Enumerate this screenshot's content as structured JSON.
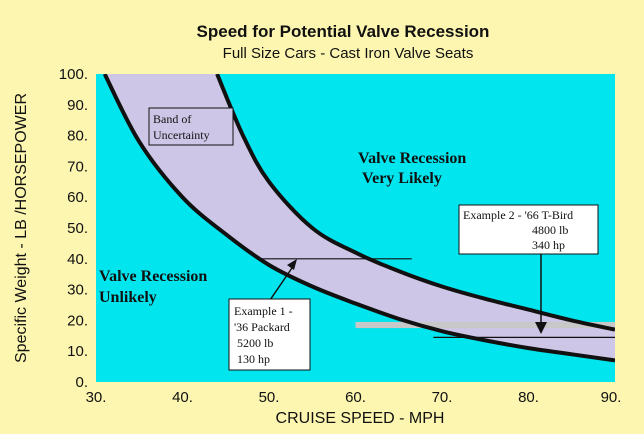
{
  "chart_data": {
    "type": "area",
    "title": "Speed for Potential Valve Recession",
    "subtitle": "Full Size Cars - Cast Iron Valve Seats",
    "xlabel": "CRUISE SPEED - MPH",
    "ylabel": "Specific Weight - LB /HORSEPOWER",
    "xlim": [
      30,
      90
    ],
    "ylim": [
      0,
      100
    ],
    "x_ticks": [
      "30.",
      "40.",
      "50.",
      "60.",
      "70.",
      "80.",
      "90."
    ],
    "y_ticks": [
      "0.",
      "10.",
      "20.",
      "30.",
      "40.",
      "50.",
      "60.",
      "70.",
      "80.",
      "90.",
      "100."
    ],
    "grid": false,
    "colors": {
      "plot_background": "#00e5ee",
      "band_fill": "#cdc6e6",
      "page_background": "#fdf6b0",
      "example_bar": "#c8c8c8"
    },
    "series": [
      {
        "name": "Band of Uncertainty",
        "lower": {
          "x": [
            31,
            35,
            40,
            45,
            50,
            55,
            60,
            65,
            70,
            75,
            80,
            85,
            90
          ],
          "y": [
            100,
            78,
            60,
            48,
            38,
            31,
            25.5,
            20.5,
            16.5,
            13.5,
            11,
            9,
            7
          ]
        },
        "upper": {
          "x": [
            44,
            47,
            50,
            55,
            60,
            65,
            70,
            75,
            80,
            85,
            90
          ],
          "y": [
            100,
            80,
            65,
            50,
            42,
            36,
            31,
            27,
            23.5,
            20,
            17
          ]
        }
      }
    ],
    "annotations": [
      {
        "lines": [
          "Band of",
          "Uncertainty"
        ]
      },
      {
        "lines": [
          "Valve Recession",
          "Very Likely"
        ]
      },
      {
        "lines": [
          "Valve Recession",
          "Unlikely"
        ]
      },
      {
        "lines": [
          "Example 1 -",
          "'36 Packard",
          "5200 lb",
          "130 hp"
        ],
        "guide_y": 40,
        "guide_x_range": [
          49,
          66.5
        ],
        "arrow_to": {
          "x": 52.5,
          "y": 34
        }
      },
      {
        "lines": [
          "Example 2 - '66 T-Bird",
          "4800 lb",
          "340 hp"
        ],
        "bar_y_range": [
          17.5,
          19.5
        ],
        "bar_x_range": [
          60,
          90
        ],
        "guide_y": 14.5,
        "guide_x_range": [
          69,
          90
        ],
        "arrow_to": {
          "x": 81.8,
          "y": 14.5
        }
      }
    ]
  }
}
